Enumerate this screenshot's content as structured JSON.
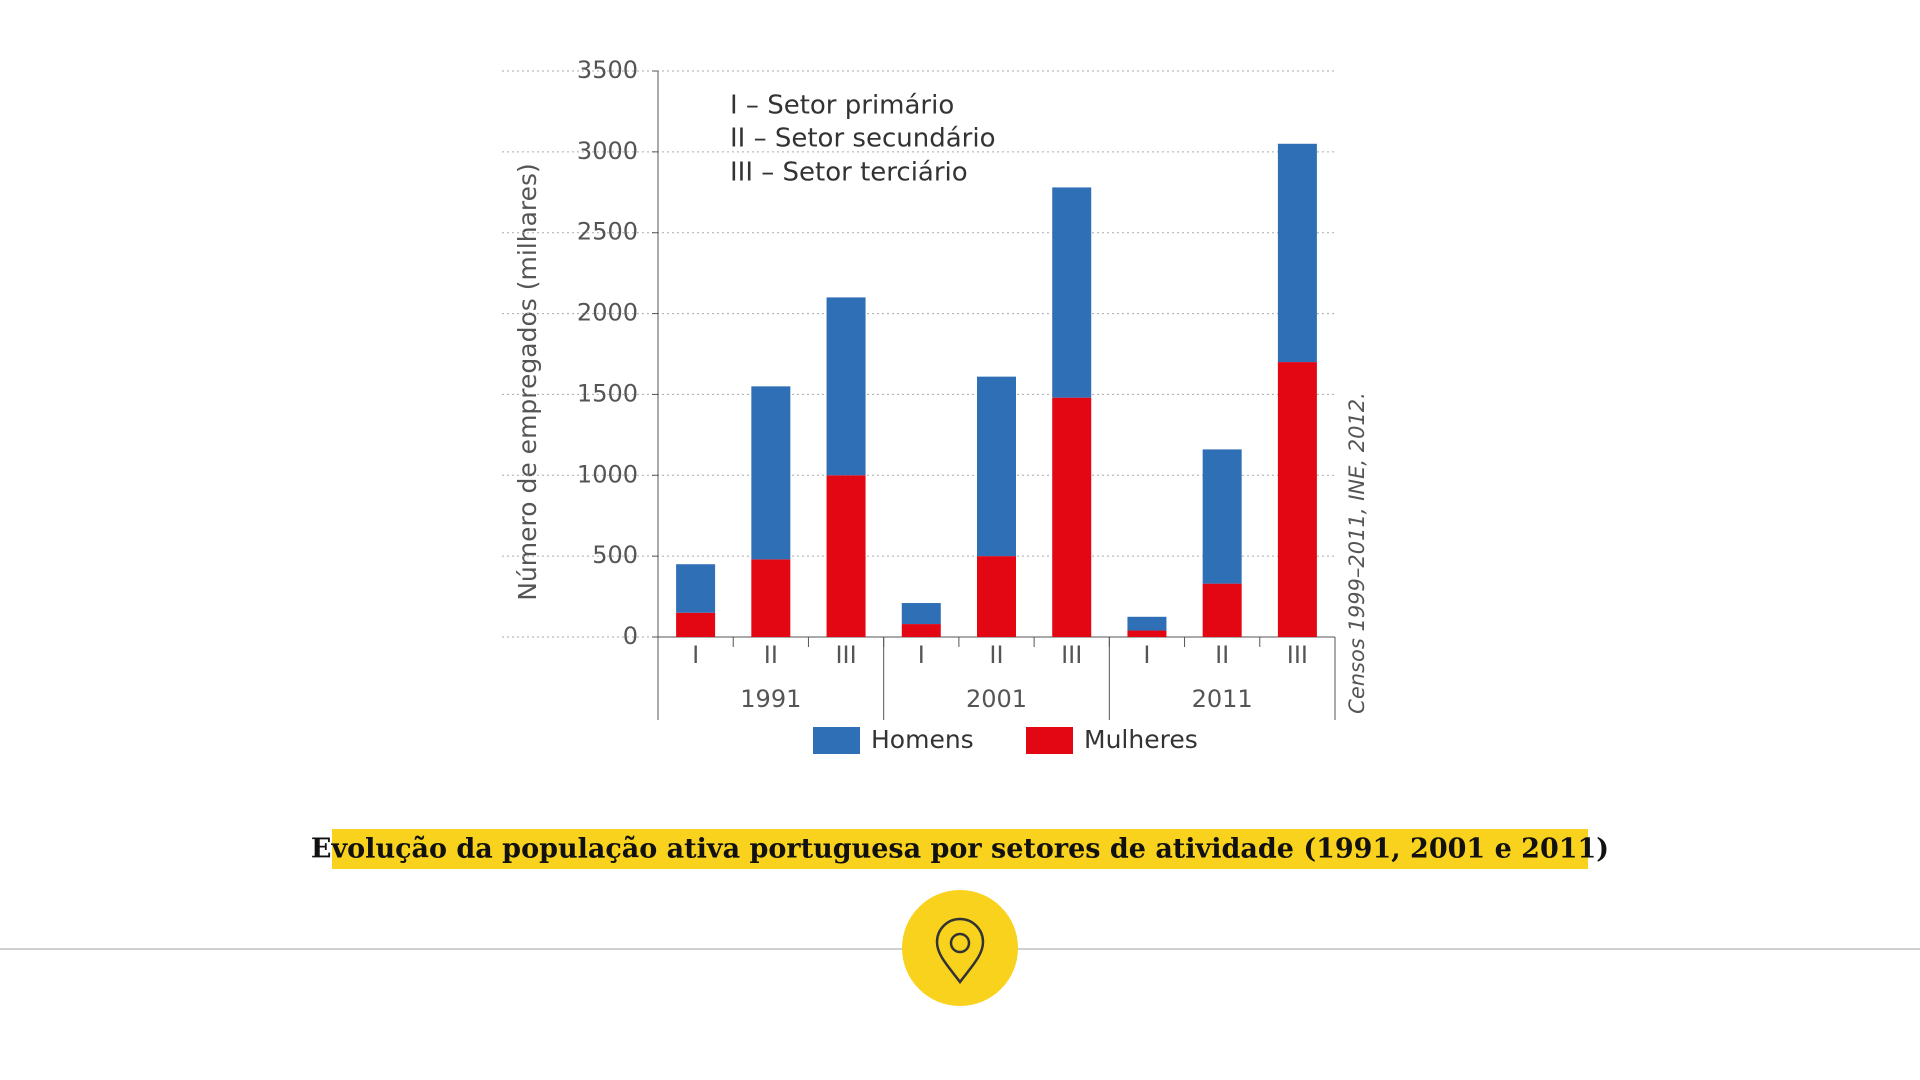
{
  "chart_data": {
    "type": "stacked_bar",
    "y_label": "Número de empregados (milhares)",
    "annotations": [
      "I – Setor primário",
      "II – Setor secundário",
      "III – Setor terciário"
    ],
    "source": "Censos 1999–2011, INE, 2012.",
    "groups": [
      "1991",
      "2001",
      "2011"
    ],
    "categories": [
      "I",
      "II",
      "III",
      "I",
      "II",
      "III",
      "I",
      "II",
      "III"
    ],
    "series": [
      {
        "name": "Homens",
        "color": "#2f6fb5",
        "values": [
          300,
          1070,
          1100,
          130,
          1110,
          1300,
          85,
          830,
          1350
        ]
      },
      {
        "name": "Mulheres",
        "color": "#e30613",
        "values": [
          150,
          480,
          1000,
          80,
          500,
          1480,
          40,
          330,
          1700
        ]
      }
    ],
    "ylim": [
      0,
      3500
    ],
    "yticks": [
      0,
      500,
      1000,
      1500,
      2000,
      2500,
      3000,
      3500
    ],
    "grid": true
  },
  "caption": "Evolução da população ativa portuguesa por setores de atividade (1991, 2001 e 2011)"
}
